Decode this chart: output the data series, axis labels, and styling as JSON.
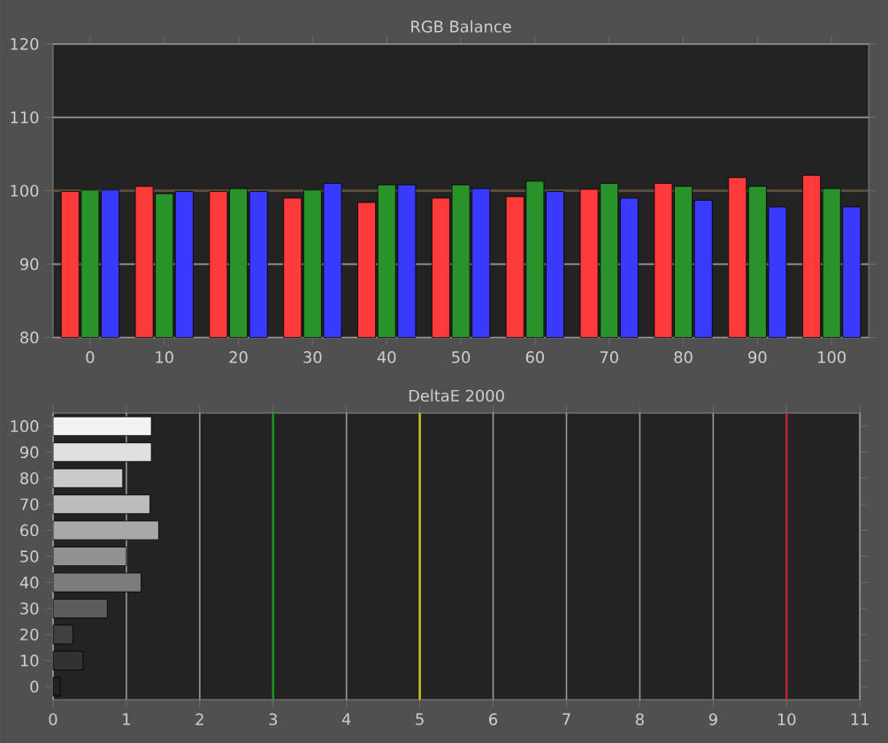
{
  "chart_data": [
    {
      "type": "bar",
      "title": "RGB Balance",
      "categories": [
        "0",
        "10",
        "20",
        "30",
        "40",
        "50",
        "60",
        "70",
        "80",
        "90",
        "100"
      ],
      "series": [
        {
          "color": "#ff3a3a",
          "values": [
            99.9,
            100.6,
            99.9,
            99.0,
            98.4,
            99.0,
            99.2,
            100.2,
            101.0,
            101.8,
            102.1
          ]
        },
        {
          "color": "#2a922a",
          "values": [
            100.1,
            99.6,
            100.3,
            100.1,
            100.8,
            100.8,
            101.3,
            101.0,
            100.6,
            100.6,
            100.3
          ]
        },
        {
          "color": "#3a3aff",
          "values": [
            100.1,
            99.9,
            99.9,
            101.0,
            100.8,
            100.3,
            99.9,
            99.0,
            98.7,
            97.8,
            97.8
          ]
        }
      ],
      "ylim": [
        80,
        120
      ],
      "yticks": [
        80,
        90,
        100,
        110,
        120
      ],
      "grid": "y",
      "ref_lines": [
        {
          "axis": "y",
          "value": 100,
          "color": "#5a4c36"
        }
      ]
    },
    {
      "type": "bar",
      "orientation": "horizontal",
      "title": "DeltaE 2000",
      "categories": [
        "100",
        "90",
        "80",
        "70",
        "60",
        "50",
        "40",
        "30",
        "20",
        "10",
        "0"
      ],
      "values": [
        1.34,
        1.34,
        0.95,
        1.32,
        1.44,
        1.0,
        1.2,
        0.74,
        0.27,
        0.41,
        0.1
      ],
      "colors": [
        "#f2f2f2",
        "#e0e0e0",
        "#cacaca",
        "#bcbcbc",
        "#a8a8a8",
        "#929292",
        "#7c7c7c",
        "#5c5c5c",
        "#404040",
        "#323232",
        "#222222"
      ],
      "xlim": [
        0,
        11
      ],
      "xticks": [
        0,
        1,
        2,
        3,
        4,
        5,
        6,
        7,
        8,
        9,
        10,
        11
      ],
      "grid": "x",
      "ref_lines": [
        {
          "axis": "x",
          "value": 3,
          "color": "#1a9a1a"
        },
        {
          "axis": "x",
          "value": 5,
          "color": "#c8c81e"
        },
        {
          "axis": "x",
          "value": 10,
          "color": "#c02030"
        }
      ]
    }
  ]
}
